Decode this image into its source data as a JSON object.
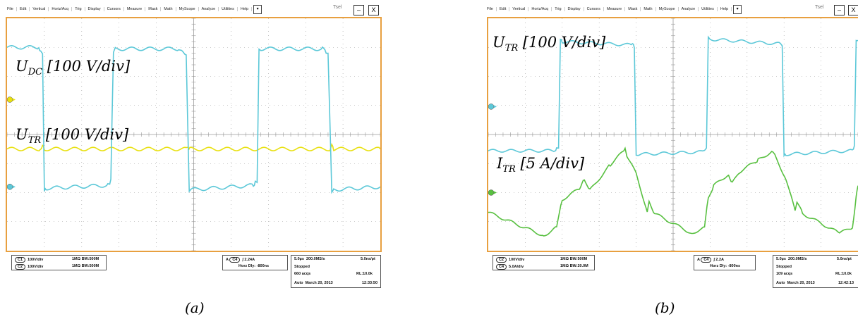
{
  "menu_a": [
    "File",
    "Edit",
    "Vertical",
    "Horiz/Acq",
    "Trig",
    "Display",
    "Cursors",
    "Measure",
    "Mask",
    "Math",
    "MyScope",
    "Analyze",
    "Utilities",
    "Help"
  ],
  "menu_b": [
    "File",
    "Edit",
    "Vertical",
    "Horiz/Acq",
    "Trig",
    "Display",
    "Cursors",
    "Measure",
    "Mask",
    "Math",
    "MyScope",
    "Analyze",
    "Utilities",
    "Help"
  ],
  "menu_dropdown": "▾",
  "tsel_a": "Tsel",
  "tsel_b": "Tsel",
  "min_btn": "–",
  "close_btn": "X",
  "colors": {
    "udc": "#e8e010",
    "utr": "#5cc8d8",
    "itr": "#58c040",
    "grid": "#9a9a9a",
    "frame": "#e8a040"
  },
  "chart_data": [
    {
      "type": "line",
      "caption": "(a)",
      "x_divisions": 10,
      "y_divisions": 8,
      "series": [
        {
          "name": "U_DC [100 V/div]",
          "label_main": "U",
          "label_sub": "DC",
          "label_rest": " [100 V/div]",
          "color": "#e8e010",
          "x": [
            0,
            0.89,
            0.95,
            1.0,
            4.8,
            4.85,
            4.9,
            8.65,
            8.7,
            8.75,
            10
          ],
          "y": [
            2.5,
            2.5,
            2.6,
            2.5,
            2.5,
            2.62,
            2.5,
            2.5,
            2.6,
            2.5,
            2.5
          ]
        },
        {
          "name": "U_TR [100 V/div]",
          "label_main": "U",
          "label_sub": "TR",
          "label_rest": " [100 V/div]",
          "color": "#5cc8d8",
          "x": [
            0,
            0.85,
            0.9,
            0.95,
            1.0,
            1.05,
            2.7,
            2.75,
            2.78,
            2.85,
            2.9,
            4.6,
            4.7,
            4.8,
            4.88,
            4.93,
            6.6,
            6.65,
            6.7,
            6.75,
            6.8,
            8.45,
            8.55,
            8.6,
            8.7,
            8.75,
            10
          ],
          "y": [
            6.0,
            6.0,
            5.85,
            5.82,
            1.0,
            1.15,
            1.25,
            1.35,
            1.4,
            5.88,
            5.95,
            5.95,
            5.85,
            5.75,
            1.05,
            1.1,
            1.25,
            1.35,
            1.4,
            5.88,
            5.95,
            5.95,
            5.85,
            5.75,
            1.05,
            1.1,
            1.2
          ]
        }
      ]
    },
    {
      "type": "line",
      "caption": "(b)",
      "x_divisions": 10,
      "y_divisions": 8,
      "series": [
        {
          "name": "U_TR [100 V/div]",
          "label_main": "U",
          "label_sub": "TR",
          "label_rest": " [100 V/div]",
          "color": "#5cc8d8",
          "x": [
            0,
            1.8,
            1.85,
            1.9,
            1.95,
            2.0,
            3.9,
            3.95,
            4.0,
            4.05,
            5.8,
            5.85,
            5.9,
            5.95,
            6.0,
            7.9,
            7.95,
            8.0,
            8.05,
            9.8,
            9.85,
            9.9,
            9.95,
            10
          ],
          "y": [
            -2.7,
            -2.7,
            -2.6,
            -2.55,
            2.05,
            2.0,
            1.85,
            1.8,
            -2.95,
            -2.85,
            -2.75,
            -2.65,
            -2.6,
            2.2,
            2.1,
            1.9,
            1.85,
            -2.95,
            -2.85,
            -2.7,
            -2.6,
            -2.55,
            2.1,
            2.05
          ]
        },
        {
          "name": "I_TR [5 A/div]",
          "label_main": "I",
          "label_sub": "TR",
          "label_rest": " [5 A/div]",
          "color": "#58c040",
          "x": [
            0,
            1.5,
            1.85,
            2.0,
            2.5,
            2.6,
            2.75,
            3.3,
            3.7,
            3.75,
            4.0,
            4.3,
            4.35,
            4.5,
            5.5,
            5.85,
            5.95,
            6.1,
            6.5,
            6.6,
            6.8,
            7.3,
            7.7,
            7.75,
            8.05,
            8.3,
            8.35,
            8.5,
            9.5,
            9.85,
            9.95,
            10
          ],
          "y": [
            -5.35,
            -6.35,
            -6.0,
            -4.8,
            -4.3,
            -3.9,
            -4.4,
            -3.3,
            -2.65,
            -2.9,
            -3.7,
            -5.3,
            -4.9,
            -5.4,
            -6.25,
            -6.0,
            -4.7,
            -4.2,
            -3.7,
            -4.1,
            -3.6,
            -3.1,
            -2.7,
            -2.9,
            -3.9,
            -5.3,
            -4.9,
            -5.4,
            -6.25,
            -6.0,
            -4.7,
            -4.2
          ]
        }
      ]
    }
  ],
  "status_a": {
    "ch1": "C1",
    "ch1_scale": "100V/div",
    "ch1_imp": "1MΩ BW:500M",
    "ch2": "C2",
    "ch2_scale": "100V/div",
    "ch2_imp": "1MΩ BW:500M",
    "trig_mode": "A",
    "trig_ch": "C4",
    "trig_level": "∫ 2.24A",
    "horz_delay": "Horz Dly: -800ns",
    "timebase": "5.0µs",
    "samplerate": "200.0MS/s",
    "nspt": "5.0ns/pt",
    "state": "Stopped",
    "acqs": "660 acqs",
    "rl": "RL:10.0k",
    "mode": "Auto",
    "date": "March 20, 2013",
    "time": "12:33:50"
  },
  "status_b": {
    "ch1": "C2",
    "ch1_scale": "100V/div",
    "ch1_imp": "1MΩ BW:500M",
    "ch2": "C4",
    "ch2_scale": "5.0A/div",
    "ch2_imp": "1MΩ BW:20.0M",
    "trig_mode": "A",
    "trig_ch": "C4",
    "trig_level": "∫ 2.2A",
    "horz_delay": "Horz Dly: -800ns",
    "timebase": "5.0µs",
    "samplerate": "200.0MS/s",
    "nspt": "5.0ns/pt",
    "state": "Stopped",
    "acqs": "109 acqs",
    "rl": "RL:10.0k",
    "mode": "Auto",
    "date": "March 20, 2013",
    "time": "12:42:13"
  }
}
